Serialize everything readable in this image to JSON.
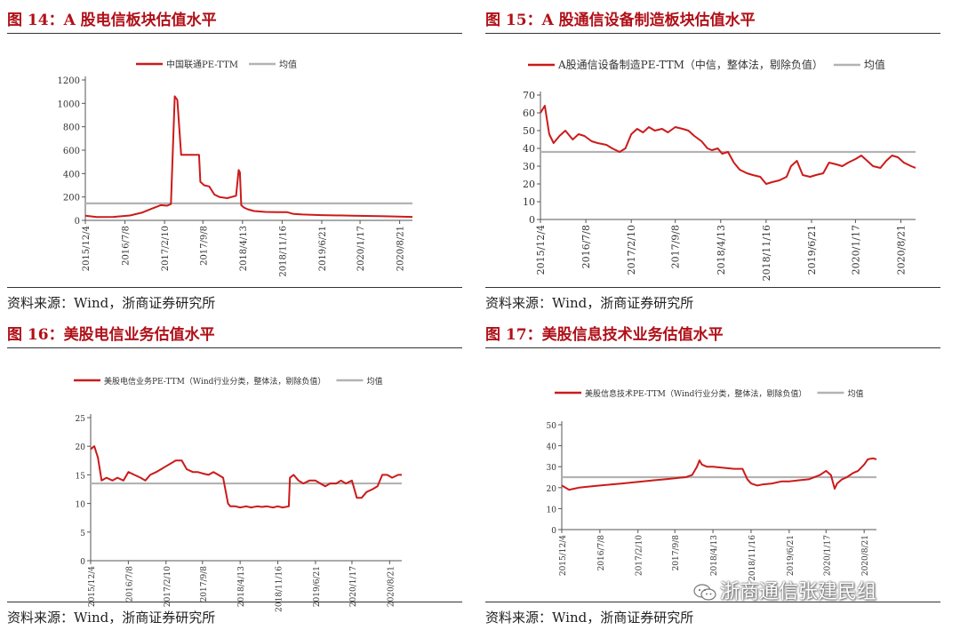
{
  "colors": {
    "title": "#b01018",
    "series": "#cc1a1a",
    "mean": "#b3b3b3",
    "axis": "#555555"
  },
  "watermark": {
    "text": "浙商通信张建民组",
    "icon": "wechat-icon"
  },
  "panels": [
    {
      "title": "图 14：A 股电信板块估值水平",
      "source": "资料来源：Wind，浙商证券研究所",
      "legend_series": "中国联通PE-TTM",
      "legend_mean": "均值"
    },
    {
      "title": "图 15：A 股通信设备制造板块估值水平",
      "source": "资料来源：Wind，浙商证券研究所",
      "legend_series": "A股通信设备制造PE-TTM（中信，整体法，剔除负值）",
      "legend_mean": "均值"
    },
    {
      "title": "图 16：美股电信业务估值水平",
      "source": "资料来源：Wind，浙商证券研究所",
      "legend_series": "美股电信业务PE-TTM（Wind行业分类，整体法，剔除负值）",
      "legend_mean": "均值"
    },
    {
      "title": "图 17：美股信息技术业务估值水平",
      "source": "资料来源：Wind，浙商证券研究所",
      "legend_series": "美股信息技术PE-TTM（Wind行业分类，整体法，剔除负值）",
      "legend_mean": "均值"
    }
  ],
  "chart_data": [
    {
      "type": "line",
      "x_ticks": [
        "2015/12/4",
        "2016/7/8",
        "2017/2/10",
        "2017/9/8",
        "2018/4/13",
        "2018/11/16",
        "2019/6/21",
        "2020/1/17",
        "2020/8/21"
      ],
      "x_range": [
        "2015/12/4",
        "2020/10/30"
      ],
      "ylim": [
        0,
        1200
      ],
      "y_ticks": [
        0,
        200,
        400,
        600,
        800,
        1000,
        1200
      ],
      "mean": 145,
      "series": [
        {
          "name": "中国联通PE-TTM",
          "x": [
            "2015/12/4",
            "2016/2/5",
            "2016/5/6",
            "2016/8/5",
            "2016/10/7",
            "2016/12/2",
            "2017/1/20",
            "2017/2/24",
            "2017/3/17",
            "2017/4/7",
            "2017/4/21",
            "2017/5/12",
            "2017/6/2",
            "2017/8/18",
            "2017/8/25",
            "2017/9/15",
            "2017/10/13",
            "2017/11/10",
            "2017/12/8",
            "2018/1/19",
            "2018/3/9",
            "2018/3/23",
            "2018/3/30",
            "2018/4/6",
            "2018/4/20",
            "2018/5/11",
            "2018/6/15",
            "2018/8/17",
            "2018/10/19",
            "2018/12/14",
            "2019/1/18",
            "2019/3/8",
            "2019/6/21",
            "2019/12/6",
            "2020/6/5",
            "2020/10/30"
          ],
          "y": [
            40,
            28,
            30,
            42,
            65,
            100,
            130,
            125,
            140,
            1060,
            1030,
            560,
            560,
            560,
            330,
            300,
            290,
            220,
            200,
            190,
            210,
            430,
            410,
            130,
            110,
            95,
            80,
            72,
            70,
            70,
            55,
            50,
            45,
            40,
            35,
            30
          ]
        }
      ]
    },
    {
      "type": "line",
      "x_ticks": [
        "2015/12/4",
        "2016/7/8",
        "2017/2/10",
        "2017/9/8",
        "2018/4/13",
        "2018/11/16",
        "2019/6/21",
        "2020/1/17",
        "2020/8/21"
      ],
      "x_range": [
        "2015/12/4",
        "2020/10/30"
      ],
      "ylim": [
        0,
        70
      ],
      "y_ticks": [
        0,
        10,
        20,
        30,
        40,
        50,
        60,
        70
      ],
      "mean": 38,
      "series": [
        {
          "name": "A股通信设备制造PE-TTM（中信，整体法，剔除负值）",
          "x": [
            "2015/12/4",
            "2015/12/25",
            "2016/1/15",
            "2016/2/5",
            "2016/3/4",
            "2016/4/1",
            "2016/5/6",
            "2016/6/3",
            "2016/7/1",
            "2016/8/5",
            "2016/9/2",
            "2016/10/14",
            "2016/11/11",
            "2016/12/16",
            "2017/1/13",
            "2017/2/10",
            "2017/3/10",
            "2017/4/7",
            "2017/5/5",
            "2017/6/2",
            "2017/7/7",
            "2017/8/4",
            "2017/9/8",
            "2017/10/13",
            "2017/11/10",
            "2017/12/8",
            "2018/1/12",
            "2018/2/9",
            "2018/3/2",
            "2018/3/30",
            "2018/4/20",
            "2018/5/18",
            "2018/6/15",
            "2018/7/13",
            "2018/8/17",
            "2018/9/14",
            "2018/10/19",
            "2018/11/16",
            "2018/12/14",
            "2019/1/18",
            "2019/2/22",
            "2019/3/15",
            "2019/4/12",
            "2019/5/10",
            "2019/6/14",
            "2019/7/12",
            "2019/8/16",
            "2019/9/13",
            "2019/10/18",
            "2019/11/15",
            "2019/12/13",
            "2020/1/17",
            "2020/2/14",
            "2020/3/13",
            "2020/4/10",
            "2020/5/15",
            "2020/6/12",
            "2020/7/10",
            "2020/8/7",
            "2020/9/4",
            "2020/10/9",
            "2020/10/30"
          ],
          "y": [
            60,
            64,
            48,
            43,
            47,
            50,
            45,
            48,
            47,
            44,
            43,
            42,
            40,
            38,
            40,
            48,
            51,
            49,
            52,
            50,
            51,
            49,
            52,
            51,
            50,
            47,
            44,
            40,
            39,
            40,
            37,
            38,
            32,
            28,
            26,
            25,
            24,
            20,
            21,
            22,
            24,
            30,
            33,
            25,
            24,
            25,
            26,
            32,
            31,
            30,
            32,
            34,
            36,
            33,
            30,
            29,
            33,
            36,
            35,
            32,
            30,
            29
          ]
        }
      ]
    },
    {
      "type": "line",
      "x_ticks": [
        "2015/12/4",
        "2016/7/8",
        "2017/2/10",
        "2017/9/8",
        "2018/4/13",
        "2018/11/16",
        "2019/6/21",
        "2020/1/17",
        "2020/8/21"
      ],
      "x_range": [
        "2015/12/4",
        "2020/10/30"
      ],
      "ylim": [
        0,
        25
      ],
      "y_ticks": [
        0,
        5,
        10,
        15,
        20,
        25
      ],
      "mean": 13.5,
      "series": [
        {
          "name": "美股电信业务PE-TTM（Wind行业分类，整体法，剔除负值）",
          "x": [
            "2015/12/4",
            "2015/12/25",
            "2016/1/15",
            "2016/2/5",
            "2016/3/4",
            "2016/4/8",
            "2016/5/6",
            "2016/6/10",
            "2016/7/8",
            "2016/8/12",
            "2016/9/16",
            "2016/10/14",
            "2016/11/11",
            "2016/12/16",
            "2017/1/13",
            "2017/2/10",
            "2017/3/10",
            "2017/4/7",
            "2017/5/12",
            "2017/6/9",
            "2017/7/14",
            "2017/8/11",
            "2017/9/15",
            "2017/10/13",
            "2017/11/10",
            "2017/12/8",
            "2018/1/5",
            "2018/2/2",
            "2018/2/16",
            "2018/3/16",
            "2018/4/13",
            "2018/5/18",
            "2018/6/15",
            "2018/7/20",
            "2018/8/17",
            "2018/9/14",
            "2018/10/19",
            "2018/11/16",
            "2018/12/14",
            "2019/1/18",
            "2019/1/25",
            "2019/2/15",
            "2019/3/15",
            "2019/4/12",
            "2019/5/17",
            "2019/6/21",
            "2019/7/19",
            "2019/8/16",
            "2019/9/13",
            "2019/10/18",
            "2019/11/15",
            "2019/12/13",
            "2020/1/17",
            "2020/2/14",
            "2020/3/13",
            "2020/4/10",
            "2020/5/15",
            "2020/6/12",
            "2020/7/10",
            "2020/8/7",
            "2020/9/4",
            "2020/10/9",
            "2020/10/30"
          ],
          "y": [
            19.5,
            20,
            18,
            14,
            14.5,
            14,
            14.5,
            14,
            15.5,
            15,
            14.5,
            14,
            15,
            15.5,
            16,
            16.5,
            17,
            17.5,
            17.5,
            16,
            15.5,
            15.5,
            15.2,
            15,
            15.5,
            15,
            14.5,
            10,
            9.5,
            9.5,
            9.3,
            9.5,
            9.3,
            9.5,
            9.4,
            9.5,
            9.3,
            9.5,
            9.3,
            9.5,
            14.5,
            15,
            14,
            13.5,
            14,
            14,
            13.5,
            13,
            13.5,
            13.5,
            14,
            13.5,
            14,
            11,
            11,
            12,
            12.5,
            13,
            15,
            15,
            14.5,
            15,
            15
          ]
        }
      ]
    },
    {
      "type": "line",
      "x_ticks": [
        "2015/12/4",
        "2016/7/8",
        "2017/2/10",
        "2017/9/8",
        "2018/4/13",
        "2018/11/16",
        "2019/6/21",
        "2020/1/17",
        "2020/8/21"
      ],
      "x_range": [
        "2015/12/4",
        "2020/10/30"
      ],
      "ylim": [
        0,
        50
      ],
      "y_ticks": [
        0,
        10,
        20,
        30,
        40,
        50
      ],
      "mean": 25,
      "series": [
        {
          "name": "美股信息技术PE-TTM（Wind行业分类，整体法，剔除负值）",
          "x": [
            "2015/12/4",
            "2016/1/15",
            "2016/2/12",
            "2016/3/11",
            "2016/5/6",
            "2016/7/8",
            "2016/9/9",
            "2016/11/11",
            "2017/1/13",
            "2017/3/10",
            "2017/5/12",
            "2017/7/14",
            "2017/9/8",
            "2017/11/10",
            "2017/12/15",
            "2018/1/12",
            "2018/1/26",
            "2018/2/9",
            "2018/3/9",
            "2018/4/13",
            "2018/6/8",
            "2018/8/10",
            "2018/9/28",
            "2018/10/26",
            "2018/11/16",
            "2018/12/21",
            "2019/1/18",
            "2019/3/15",
            "2019/5/10",
            "2019/6/21",
            "2019/8/16",
            "2019/10/11",
            "2019/12/13",
            "2020/1/17",
            "2020/2/14",
            "2020/3/6",
            "2020/3/20",
            "2020/4/17",
            "2020/5/15",
            "2020/6/19",
            "2020/7/17",
            "2020/8/21",
            "2020/9/11",
            "2020/10/9",
            "2020/10/30"
          ],
          "y": [
            21,
            19,
            19.5,
            20,
            20.5,
            21,
            21.5,
            22,
            22.5,
            23,
            23.5,
            24,
            24.5,
            25,
            26,
            30,
            33,
            31,
            30,
            30,
            29.5,
            29,
            29,
            24,
            22,
            21,
            21.5,
            22,
            23,
            23,
            23.5,
            24,
            26,
            28,
            26,
            19.5,
            22,
            24,
            25,
            27,
            28,
            31,
            33.5,
            34,
            33.5
          ]
        }
      ]
    }
  ]
}
